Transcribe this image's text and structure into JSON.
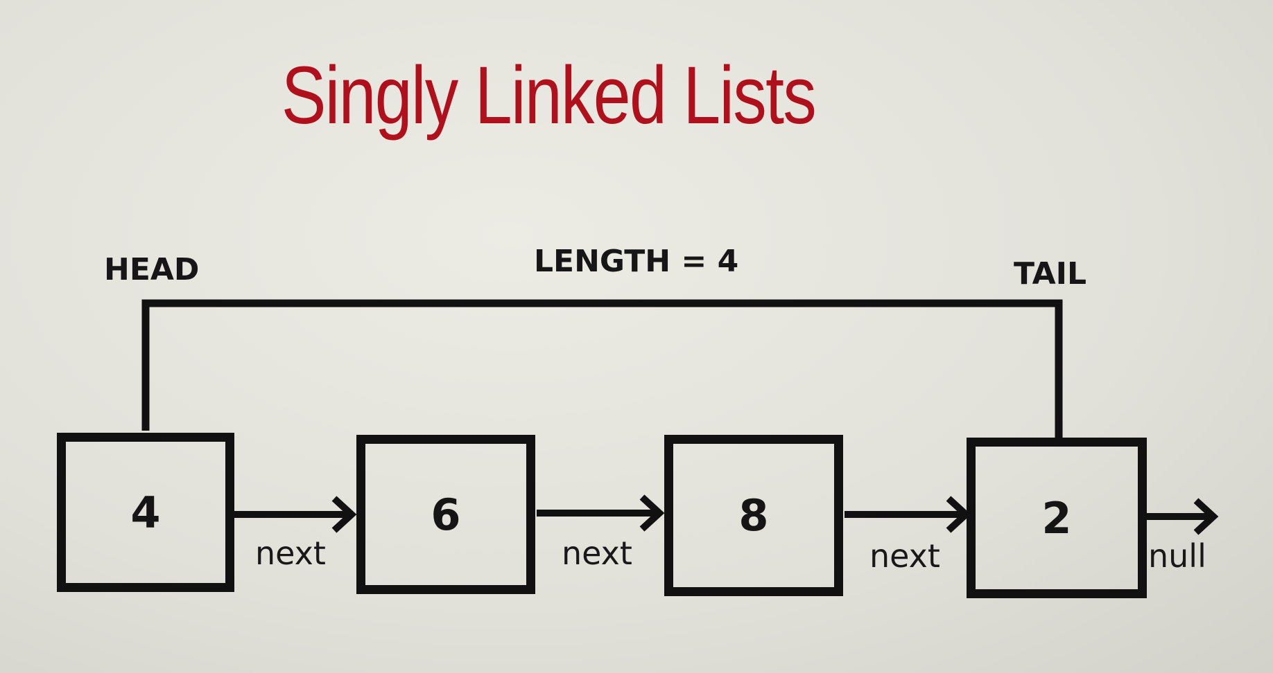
{
  "title": "Singly Linked Lists",
  "labels": {
    "head": "HEAD",
    "tail": "TAIL",
    "length": "LENGTH = 4"
  },
  "nodes": [
    {
      "value": "4",
      "link_label": "next"
    },
    {
      "value": "6",
      "link_label": "next"
    },
    {
      "value": "8",
      "link_label": "next"
    },
    {
      "value": "2",
      "link_label": "null"
    }
  ],
  "colors": {
    "title": "#b0101c",
    "lines": "#111111"
  }
}
